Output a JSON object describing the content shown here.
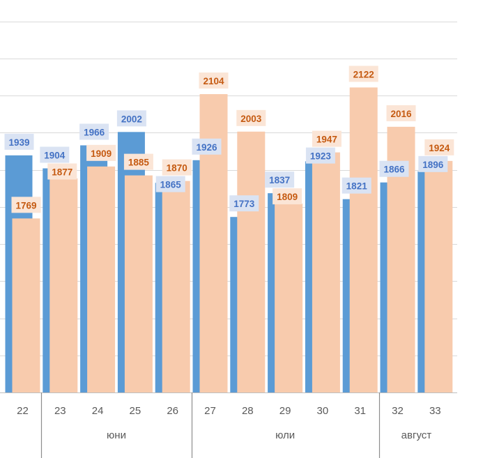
{
  "chart_data": {
    "type": "bar",
    "colors": {
      "series_a": "#5b9bd5",
      "series_b": "#f8cbad",
      "label_a_text": "#4472c4",
      "label_b_text": "#c55a11",
      "label_a_bg": "#dae3f3",
      "label_b_bg": "#fbe5d6"
    },
    "categories": [
      "22",
      "23",
      "24",
      "25",
      "26",
      "27",
      "28",
      "29",
      "30",
      "31",
      "32",
      "33"
    ],
    "months": [
      {
        "name": "юни",
        "from": "23",
        "to": "26"
      },
      {
        "name": "юли",
        "from": "27",
        "to": "31"
      },
      {
        "name": "август",
        "from": "32",
        "to": "33"
      }
    ],
    "series": [
      {
        "name": "",
        "values": [
          1939,
          1904,
          1966,
          2002,
          1865,
          1926,
          1773,
          1837,
          1923,
          1821,
          1866,
          1896
        ]
      },
      {
        "name": "",
        "values": [
          1769,
          1877,
          1909,
          1885,
          1870,
          2104,
          2003,
          1809,
          1947,
          2122,
          2016,
          1924
        ]
      }
    ],
    "ylim": [
      0,
      2500
    ],
    "grid": true
  }
}
